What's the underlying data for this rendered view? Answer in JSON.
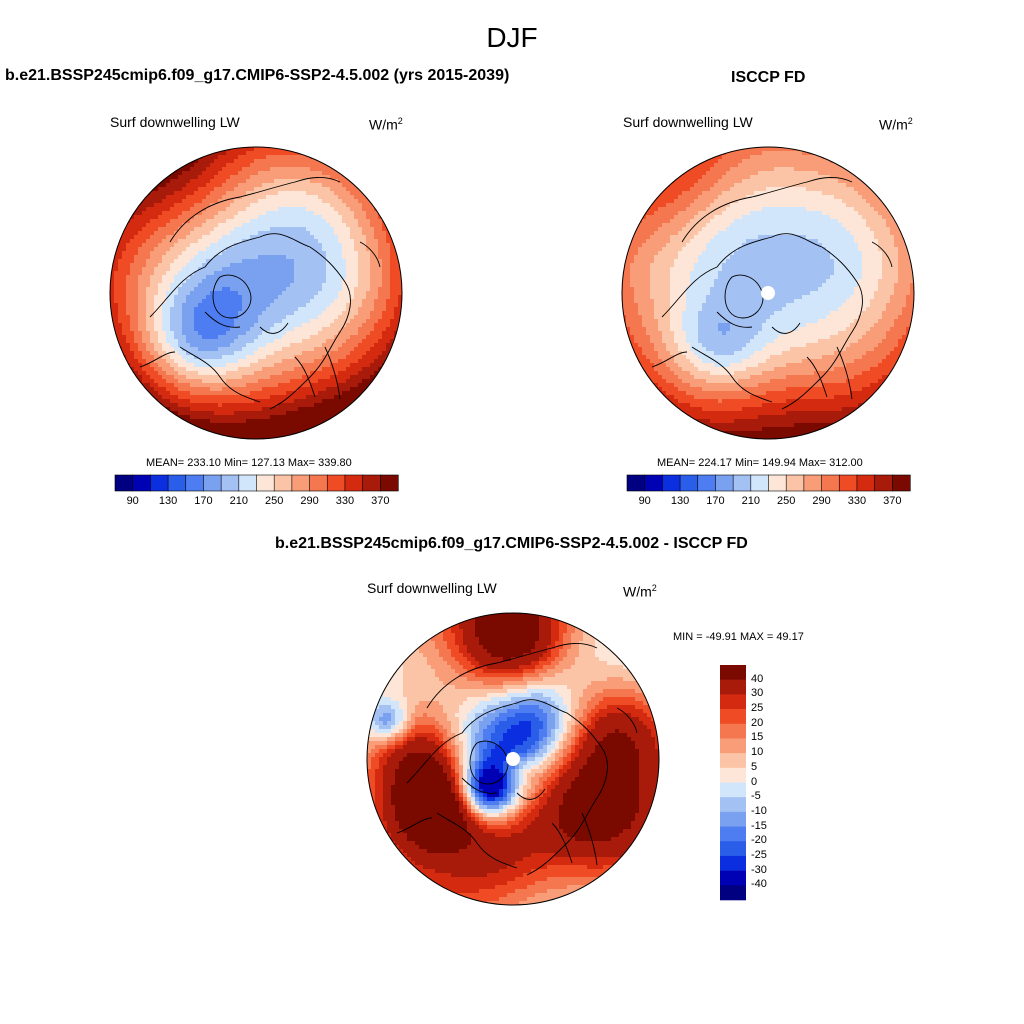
{
  "title": "DJF",
  "color_scale": [
    "#000080",
    "#0000b4",
    "#0b2fe0",
    "#2a5de8",
    "#4d7df0",
    "#7aa0f0",
    "#a4c1f4",
    "#d2e6fb",
    "#fde6d8",
    "#fcc4a6",
    "#f89d78",
    "#f4774f",
    "#ef4b24",
    "#d42a10",
    "#a81a0a",
    "#7a0a00"
  ],
  "panels": [
    {
      "id": "model",
      "title": "b.e21.BSSP245cmip6.f09_g17.CMIP6-SSP2-4.5.002 (yrs 2015-2039)",
      "variable": "Surf downwelling LW",
      "unit_base": "W/m",
      "unit_sup": "2",
      "stats": "MEAN= 233.10  Min= 127.13  Max= 339.80",
      "colorbar_ticks": [
        "90",
        "130",
        "170",
        "210",
        "250",
        "290",
        "330",
        "370"
      ],
      "pole_missing": false
    },
    {
      "id": "obs",
      "title": "ISCCP FD",
      "variable": "Surf downwelling LW",
      "unit_base": "W/m",
      "unit_sup": "2",
      "stats": "MEAN= 224.17  Min= 149.94  Max= 312.00",
      "colorbar_ticks": [
        "90",
        "130",
        "170",
        "210",
        "250",
        "290",
        "330",
        "370"
      ],
      "pole_missing": true
    },
    {
      "id": "diff",
      "title": "b.e21.BSSP245cmip6.f09_g17.CMIP6-SSP2-4.5.002 - ISCCP FD",
      "variable": "Surf downwelling LW",
      "unit_base": "W/m",
      "unit_sup": "2",
      "stats": "MIN = -49.91 MAX =  49.17",
      "colorbar_ticks": [
        "40",
        "30",
        "25",
        "20",
        "15",
        "10",
        "5",
        "0",
        "-5",
        "-10",
        "-15",
        "-20",
        "-25",
        "-30",
        "-40"
      ],
      "pole_missing": true
    }
  ]
}
